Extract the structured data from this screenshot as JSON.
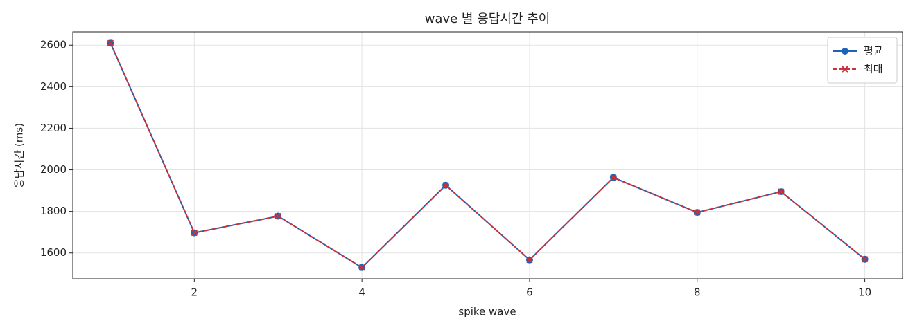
{
  "chart_data": {
    "type": "line",
    "title": "wave 별 응답시간 추이",
    "x_label": "spike wave",
    "y_label": "응답시간 (ms)",
    "x": [
      1,
      2,
      3,
      4,
      5,
      6,
      7,
      8,
      9,
      10
    ],
    "series": [
      {
        "name": "평균",
        "color": "#1f63b8",
        "marker": "o",
        "linestyle": "solid",
        "values": [
          2610,
          1697,
          1777,
          1530,
          1926,
          1567,
          1963,
          1795,
          1895,
          1570
        ]
      },
      {
        "name": "최대",
        "color": "#c8323a",
        "marker": "x",
        "linestyle": "dashed",
        "values": [
          2610,
          1697,
          1777,
          1530,
          1926,
          1567,
          1963,
          1795,
          1895,
          1570
        ]
      }
    ],
    "xlim": [
      0.55,
      10.45
    ],
    "xticks": [
      2,
      4,
      6,
      8,
      10
    ],
    "ylim": [
      1476,
      2664
    ],
    "yticks": [
      1600,
      1800,
      2000,
      2200,
      2400,
      2600
    ],
    "grid": true,
    "legend": "upper right"
  }
}
